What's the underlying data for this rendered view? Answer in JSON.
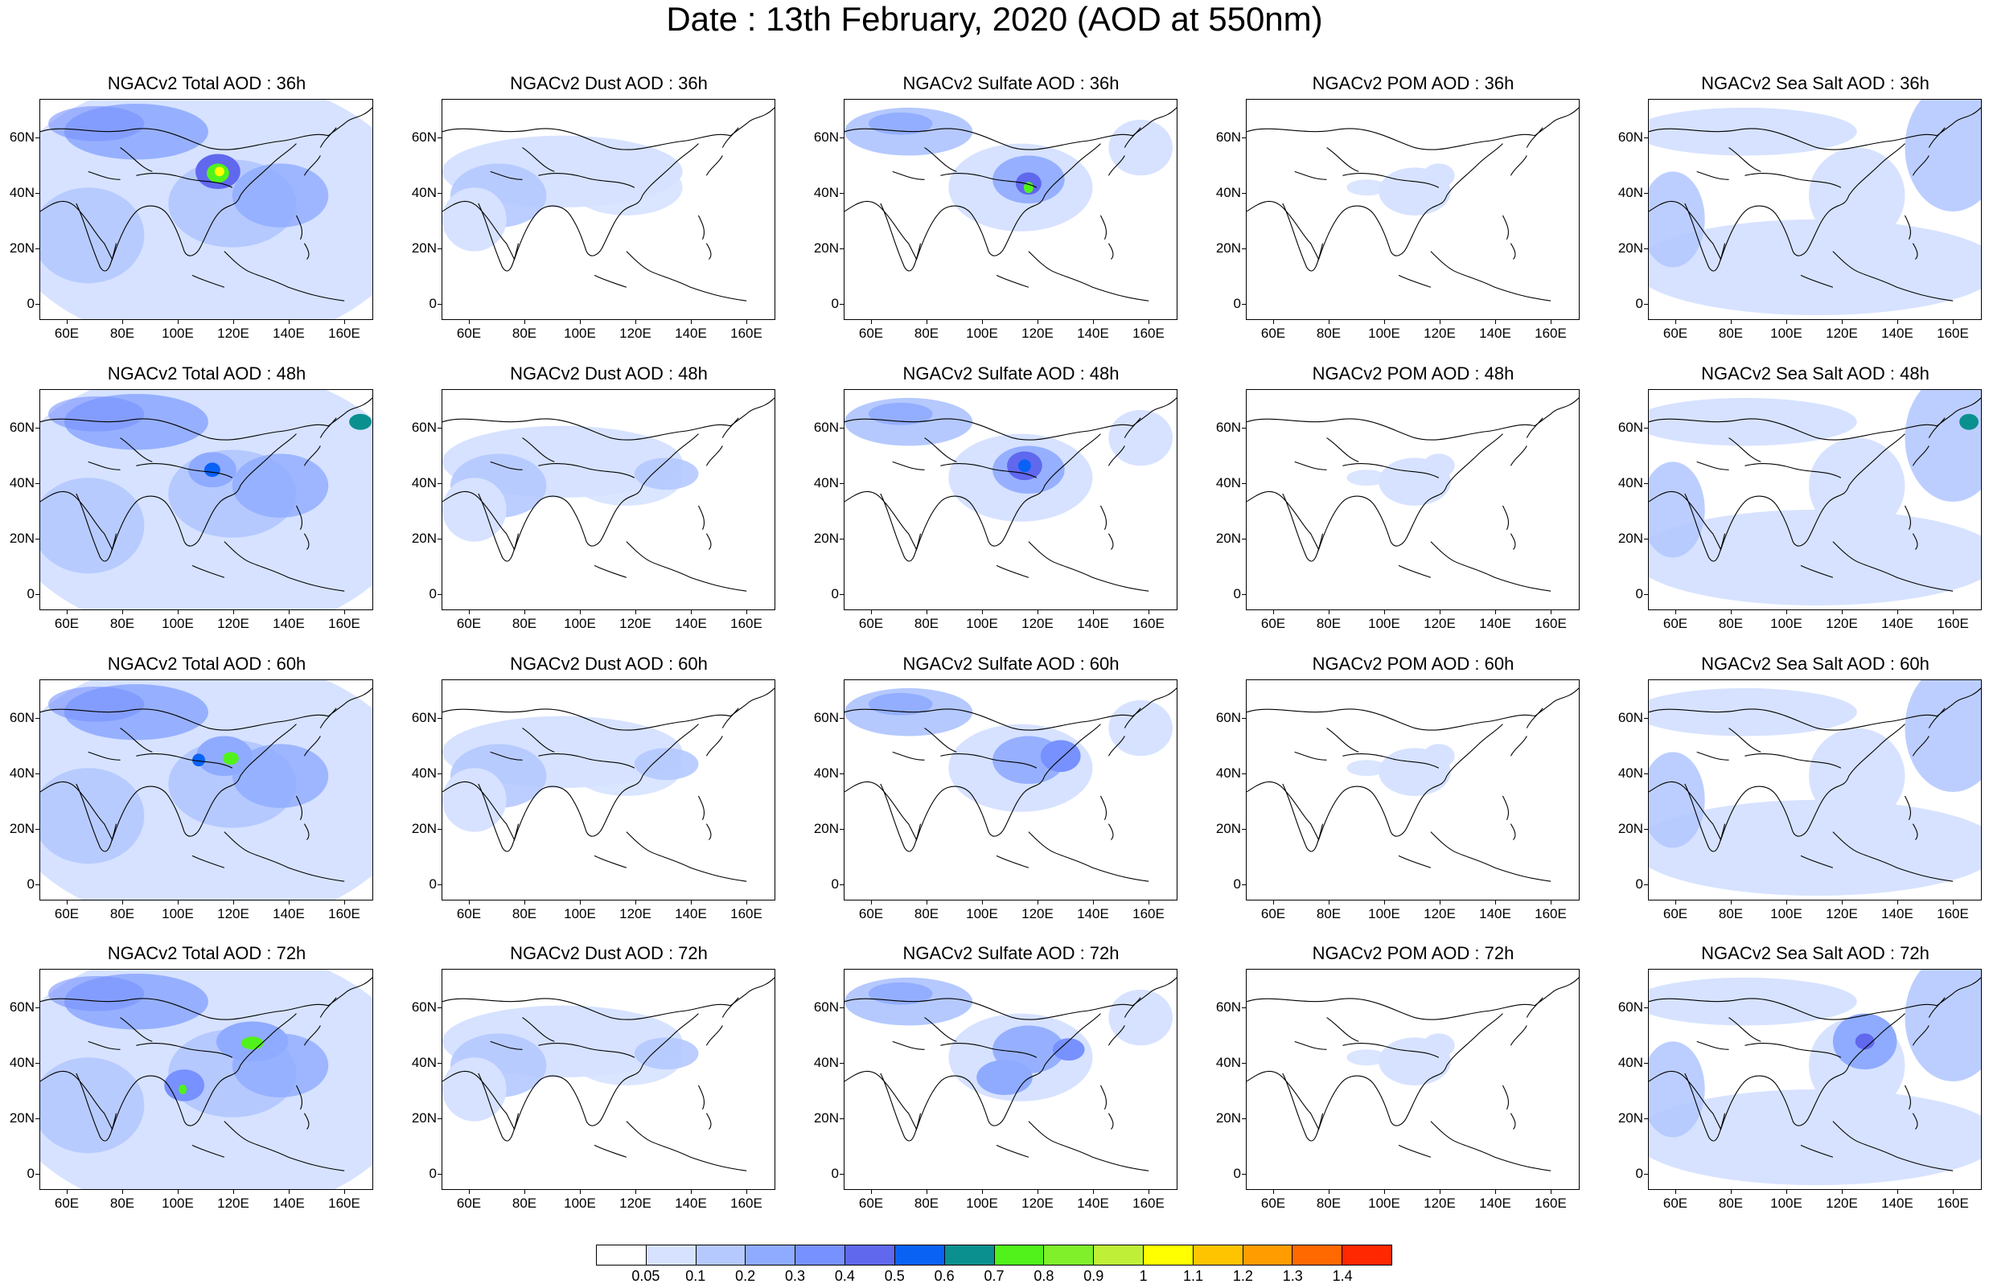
{
  "title": "Date : 13th February, 2020 (AOD at 550nm)",
  "axes": {
    "y_labels": [
      "60N",
      "40N",
      "20N",
      "0"
    ],
    "x_labels": [
      "60E",
      "80E",
      "100E",
      "120E",
      "140E",
      "160E"
    ]
  },
  "panels": [
    [
      "NGACv2 Total AOD : 36h",
      "NGACv2 Dust AOD : 36h",
      "NGACv2 Sulfate AOD : 36h",
      "NGACv2 POM AOD : 36h",
      "NGACv2 Sea Salt AOD : 36h"
    ],
    [
      "NGACv2 Total AOD : 48h",
      "NGACv2 Dust AOD : 48h",
      "NGACv2 Sulfate AOD : 48h",
      "NGACv2 POM AOD : 48h",
      "NGACv2 Sea Salt AOD : 48h"
    ],
    [
      "NGACv2 Total AOD : 60h",
      "NGACv2 Dust AOD : 60h",
      "NGACv2 Sulfate AOD : 60h",
      "NGACv2 POM AOD : 60h",
      "NGACv2 Sea Salt AOD : 60h"
    ],
    [
      "NGACv2 Total AOD : 72h",
      "NGACv2 Dust AOD : 72h",
      "NGACv2 Sulfate AOD : 72h",
      "NGACv2 POM AOD : 72h",
      "NGACv2 Sea Salt  AOD : 72h"
    ]
  ],
  "colorbar": {
    "labels": [
      "0.05",
      "0.1",
      "0.2",
      "0.3",
      "0.4",
      "0.5",
      "0.6",
      "0.7",
      "0.8",
      "0.9",
      "1",
      "1.1",
      "1.2",
      "1.3",
      "1.4"
    ],
    "colors": [
      "#ffffff",
      "#d6e2ff",
      "#b5c9ff",
      "#8fabff",
      "#7791ff",
      "#6068ee",
      "#0a62f5",
      "#0b9090",
      "#51f21b",
      "#7ff02a",
      "#bff037",
      "#ffff00",
      "#ffc400",
      "#ff9d00",
      "#ff6900",
      "#ff2800"
    ]
  }
}
